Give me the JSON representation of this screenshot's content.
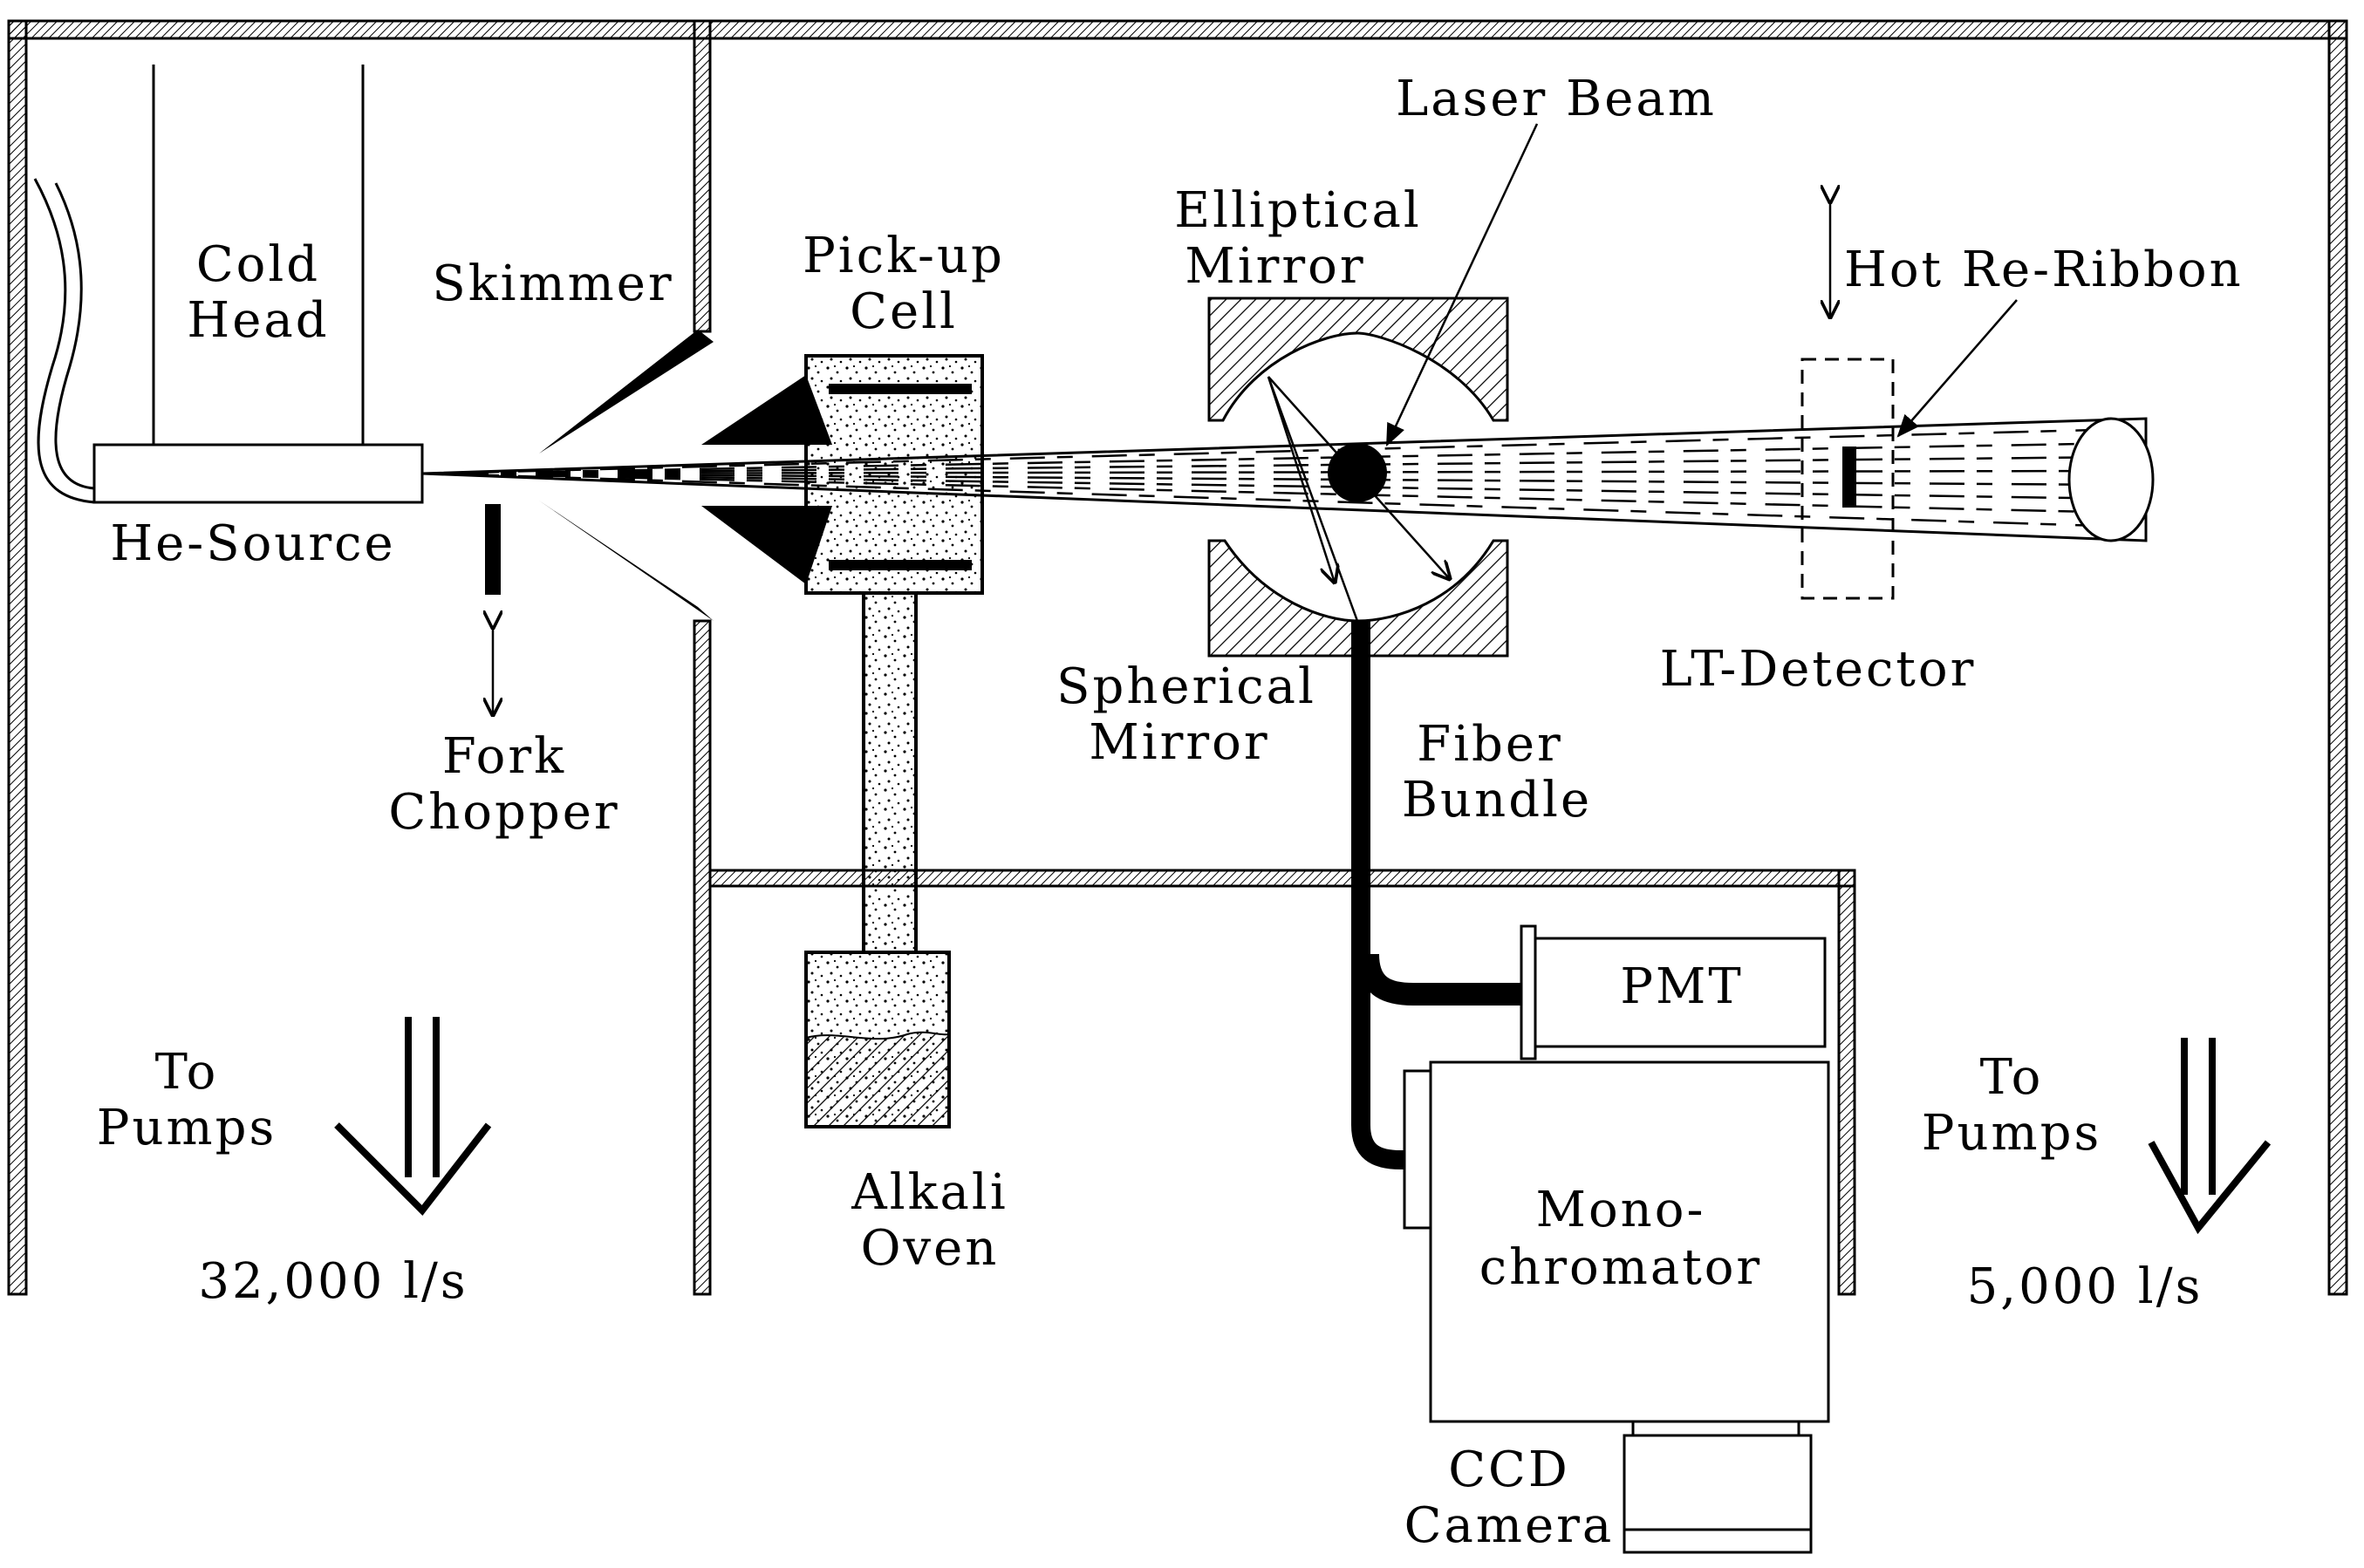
{
  "labels": {
    "cold_head": [
      "Cold",
      "Head"
    ],
    "he_source": "He-Source",
    "skimmer": "Skimmer",
    "fork_chopper": [
      "Fork",
      "Chopper"
    ],
    "pickup_cell": [
      "Pick-up",
      "Cell"
    ],
    "alkali_oven": [
      "Alkali",
      "Oven"
    ],
    "laser_beam": "Laser Beam",
    "elliptical_mirror": [
      "Elliptical",
      "Mirror"
    ],
    "spherical_mirror": [
      "Spherical",
      "Mirror"
    ],
    "fiber_bundle": [
      "Fiber",
      "Bundle"
    ],
    "hot_ribbon": "Hot Re-Ribbon",
    "lt_detector": "LT-Detector",
    "pmt": "PMT",
    "monochromator": [
      "Mono-",
      "chromator"
    ],
    "ccd_camera": [
      "CCD",
      "Camera"
    ],
    "pumps_left": [
      "To",
      "Pumps"
    ],
    "pumps_left_speed": "32,000 l/s",
    "pumps_right": [
      "To",
      "Pumps"
    ],
    "pumps_right_speed": "5,000 l/s"
  },
  "colors": {
    "ink": "#000000",
    "background": "#ffffff"
  }
}
